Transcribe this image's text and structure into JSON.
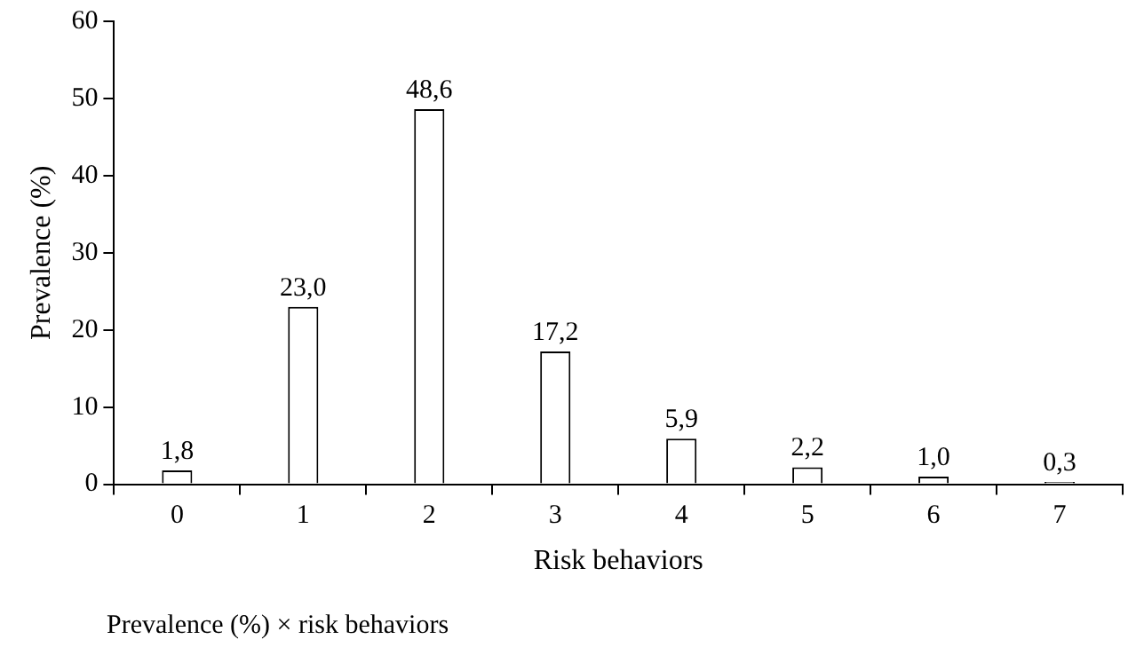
{
  "chart_data": {
    "type": "bar",
    "xlabel": "Risk behaviors",
    "ylabel": "Prevalence (%)",
    "categories": [
      "0",
      "1",
      "2",
      "3",
      "4",
      "5",
      "6",
      "7"
    ],
    "values": [
      1.8,
      23.0,
      48.6,
      17.2,
      5.9,
      2.2,
      1.0,
      0.3
    ],
    "value_labels": [
      "1,8",
      "23,0",
      "48,6",
      "17,2",
      "5,9",
      "2,2",
      "1,0",
      "0,3"
    ],
    "color": "#ffffff",
    "ylim": [
      0,
      60
    ],
    "yticks": [
      0,
      10,
      20,
      30,
      40,
      50,
      60
    ],
    "grid": false,
    "legend": false,
    "annotations": [
      "Prevalence (%) × risk behaviors"
    ]
  }
}
